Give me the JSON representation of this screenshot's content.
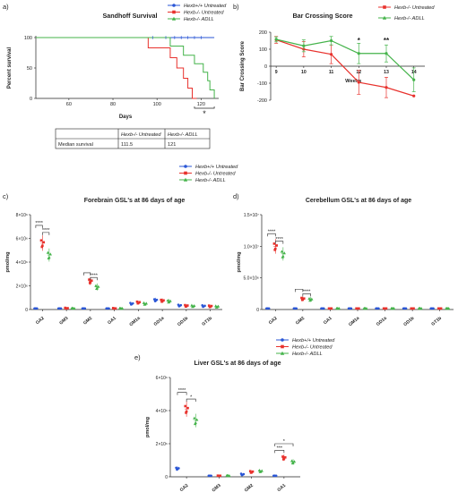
{
  "figure": {
    "panel_labels": [
      "a)",
      "b)",
      "c)",
      "d)",
      "e)"
    ],
    "colors": {
      "wt": "#2a56d6",
      "untreated": "#e8322d",
      "adll": "#44b34a",
      "axis": "#222222"
    },
    "legend_abc": [
      "Hexb+/+ Untreated",
      "Hexb-/- Untreated",
      "Hexb-/- ADLL"
    ],
    "legend_b": [
      "Hexb-/- Untreated",
      "Hexb-/- ADLL"
    ],
    "survival_table": {
      "headers": [
        "",
        "Hexb-/- Untreated",
        "Hexb-/- ADLL"
      ],
      "rows": [
        [
          "Median survival",
          "111.5",
          "121"
        ]
      ]
    }
  },
  "chart_data": [
    {
      "id": "a",
      "type": "line",
      "title": "Sandhoff Survival",
      "xlabel": "Days",
      "ylabel": "Percent survival",
      "xlim": [
        45,
        128
      ],
      "ylim": [
        0,
        100
      ],
      "xticks": [
        60,
        80,
        100,
        120
      ],
      "yticks": [
        0,
        50,
        100
      ],
      "series": [
        {
          "name": "Hexb+/+ Untreated",
          "color": "#2a56d6",
          "points": [
            [
              45,
              100
            ],
            [
              126,
              100
            ]
          ]
        },
        {
          "name": "Hexb-/- Untreated",
          "color": "#e8322d",
          "points": [
            [
              45,
              100
            ],
            [
              96,
              100
            ],
            [
              96,
              83
            ],
            [
              106,
              83
            ],
            [
              106,
              67
            ],
            [
              109,
              67
            ],
            [
              109,
              50
            ],
            [
              112,
              50
            ],
            [
              112,
              33
            ],
            [
              114,
              33
            ],
            [
              114,
              17
            ],
            [
              116,
              17
            ],
            [
              116,
              0
            ],
            [
              118,
              0
            ]
          ]
        },
        {
          "name": "Hexb-/- ADLL",
          "color": "#44b34a",
          "points": [
            [
              45,
              100
            ],
            [
              106,
              100
            ],
            [
              106,
              86
            ],
            [
              112,
              86
            ],
            [
              112,
              71
            ],
            [
              117,
              71
            ],
            [
              117,
              57
            ],
            [
              121,
              57
            ],
            [
              121,
              43
            ],
            [
              123,
              43
            ],
            [
              123,
              29
            ],
            [
              124,
              29
            ],
            [
              124,
              14
            ],
            [
              126,
              14
            ],
            [
              126,
              0
            ]
          ]
        }
      ],
      "annotations": [
        "*"
      ]
    },
    {
      "id": "b",
      "type": "line",
      "title": "Bar Crossing Score",
      "xlabel": "Weeks",
      "ylabel": "Bar Crossing Score",
      "ylim": [
        -200,
        200
      ],
      "yticks": [
        -200,
        -100,
        0,
        100,
        200
      ],
      "x": [
        9,
        10,
        11,
        12,
        13,
        14
      ],
      "series": [
        {
          "name": "Hexb-/- Untreated",
          "color": "#e8322d",
          "values": [
            155,
            100,
            70,
            -95,
            -125,
            -175
          ],
          "errors": [
            20,
            45,
            55,
            70,
            60,
            0
          ]
        },
        {
          "name": "Hexb-/- ADLL",
          "color": "#44b34a",
          "values": [
            158,
            120,
            150,
            75,
            75,
            -80
          ],
          "errors": [
            15,
            35,
            25,
            60,
            50,
            70
          ]
        }
      ],
      "annotations": [
        {
          "x": 12,
          "text": "*"
        },
        {
          "x": 13,
          "text": "**"
        }
      ]
    },
    {
      "id": "c",
      "type": "scatter",
      "title": "Forebrain GSL's at 86 days of age",
      "ylabel": "pmol/mg",
      "ylim": [
        0,
        8000000
      ],
      "ytick_values": [
        0,
        2000000,
        4000000,
        6000000,
        8000000
      ],
      "yticklabels": [
        "0",
        "2×10⁶",
        "4×10⁶",
        "6×10⁶",
        "8×10⁶"
      ],
      "categories": [
        "GA2",
        "GM3",
        "GM2",
        "GA1",
        "GM1a",
        "GD1a",
        "GD1b",
        "GT1b"
      ],
      "series": [
        {
          "name": "Hexb+/+ Untreated",
          "color": "#2a56d6",
          "values": [
            30000,
            20000,
            40000,
            20000,
            500000,
            800000,
            350000,
            300000
          ]
        },
        {
          "name": "Hexb-/- Untreated",
          "color": "#e8322d",
          "values": [
            5600000,
            100000,
            2400000,
            80000,
            600000,
            750000,
            320000,
            280000
          ]
        },
        {
          "name": "Hexb-/- ADLL",
          "color": "#44b34a",
          "values": [
            4600000,
            80000,
            1900000,
            70000,
            500000,
            700000,
            300000,
            250000
          ]
        }
      ],
      "brackets": [
        {
          "cat": 0,
          "pair": [
            0,
            1
          ],
          "y": 7100000,
          "text": "****"
        },
        {
          "cat": 0,
          "pair": [
            1,
            2
          ],
          "y": 6500000,
          "text": "****"
        },
        {
          "cat": 2,
          "pair": [
            0,
            1
          ],
          "y": 3100000,
          "text": ""
        },
        {
          "cat": 2,
          "pair": [
            1,
            2
          ],
          "y": 2700000,
          "text": "****"
        }
      ]
    },
    {
      "id": "d",
      "type": "scatter",
      "title": "Cerebellum GSL's at 86 days of age",
      "ylabel": "pmol/mg",
      "ylim": [
        0,
        15000000
      ],
      "ytick_values": [
        0,
        5000000,
        10000000,
        15000000
      ],
      "yticklabels": [
        "0",
        "5.0×10⁶",
        "1.0×10⁷",
        "1.5×10⁷"
      ],
      "categories": [
        "GA2",
        "GM2",
        "GA1",
        "GM1a",
        "GD1a",
        "GD1b",
        "GT1b"
      ],
      "series": [
        {
          "name": "Hexb+/+ Untreated",
          "color": "#2a56d6",
          "values": [
            50000,
            80000,
            30000,
            30000,
            30000,
            30000,
            30000
          ]
        },
        {
          "name": "Hexb-/- Untreated",
          "color": "#e8322d",
          "values": [
            10000000,
            1700000,
            60000,
            50000,
            50000,
            40000,
            40000
          ]
        },
        {
          "name": "Hexb-/- ADLL",
          "color": "#44b34a",
          "values": [
            8800000,
            1600000,
            50000,
            40000,
            40000,
            40000,
            40000
          ]
        }
      ],
      "brackets": [
        {
          "cat": 0,
          "pair": [
            0,
            1
          ],
          "y": 12000000,
          "text": "****"
        },
        {
          "cat": 0,
          "pair": [
            1,
            2
          ],
          "y": 10800000,
          "text": "****"
        },
        {
          "cat": 1,
          "pair": [
            0,
            1
          ],
          "y": 3200000,
          "text": ""
        },
        {
          "cat": 1,
          "pair": [
            1,
            2
          ],
          "y": 2500000,
          "text": "****"
        }
      ]
    },
    {
      "id": "e",
      "type": "scatter",
      "title": "Liver GSL's at 86 days of age",
      "ylabel": "pmol/mg",
      "ylim": [
        0,
        6000000
      ],
      "ytick_values": [
        0,
        2000000,
        4000000,
        6000000
      ],
      "yticklabels": [
        "0",
        "2×10⁶",
        "4×10⁶",
        "6×10⁶"
      ],
      "categories": [
        "GA2",
        "GM3",
        "GM2",
        "GA1"
      ],
      "series": [
        {
          "name": "Hexb+/+ Untreated",
          "color": "#2a56d6",
          "values": [
            500000,
            30000,
            150000,
            20000
          ]
        },
        {
          "name": "Hexb-/- Untreated",
          "color": "#e8322d",
          "values": [
            4100000,
            40000,
            300000,
            1150000
          ]
        },
        {
          "name": "Hexb-/- ADLL",
          "color": "#44b34a",
          "values": [
            3400000,
            50000,
            350000,
            900000
          ]
        }
      ],
      "brackets": [
        {
          "cat": 0,
          "pair": [
            0,
            1
          ],
          "y": 5100000,
          "text": "****"
        },
        {
          "cat": 0,
          "pair": [
            1,
            2
          ],
          "y": 4700000,
          "text": "*"
        },
        {
          "cat": 3,
          "pair": [
            0,
            1
          ],
          "y": 1600000,
          "text": "***"
        },
        {
          "cat": 3,
          "pair": [
            0,
            2
          ],
          "y": 2000000,
          "text": "*"
        }
      ]
    }
  ]
}
